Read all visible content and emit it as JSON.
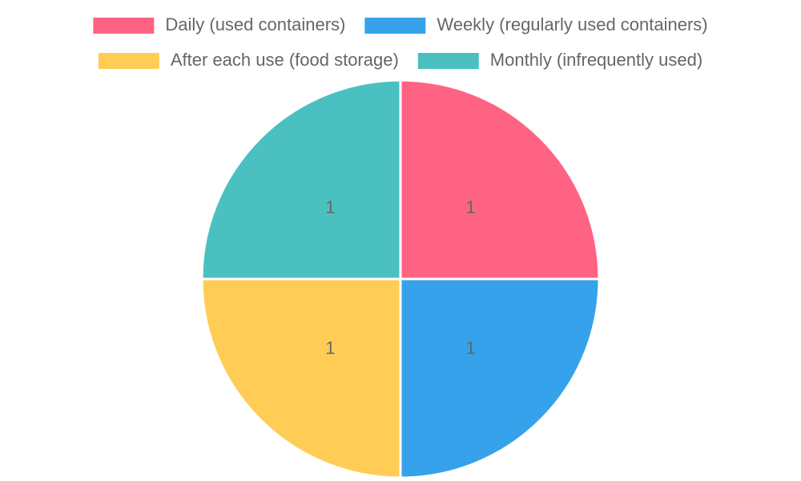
{
  "chart_data": {
    "type": "pie",
    "categories": [
      "Daily (used containers)",
      "Weekly (regularly used containers)",
      "After each use (food storage)",
      "Monthly (infrequently used)"
    ],
    "values": [
      1,
      1,
      1,
      1
    ],
    "colors": [
      "#ff6384",
      "#36a2eb",
      "#ffcd56",
      "#4bc0c0"
    ],
    "legend": "top"
  }
}
